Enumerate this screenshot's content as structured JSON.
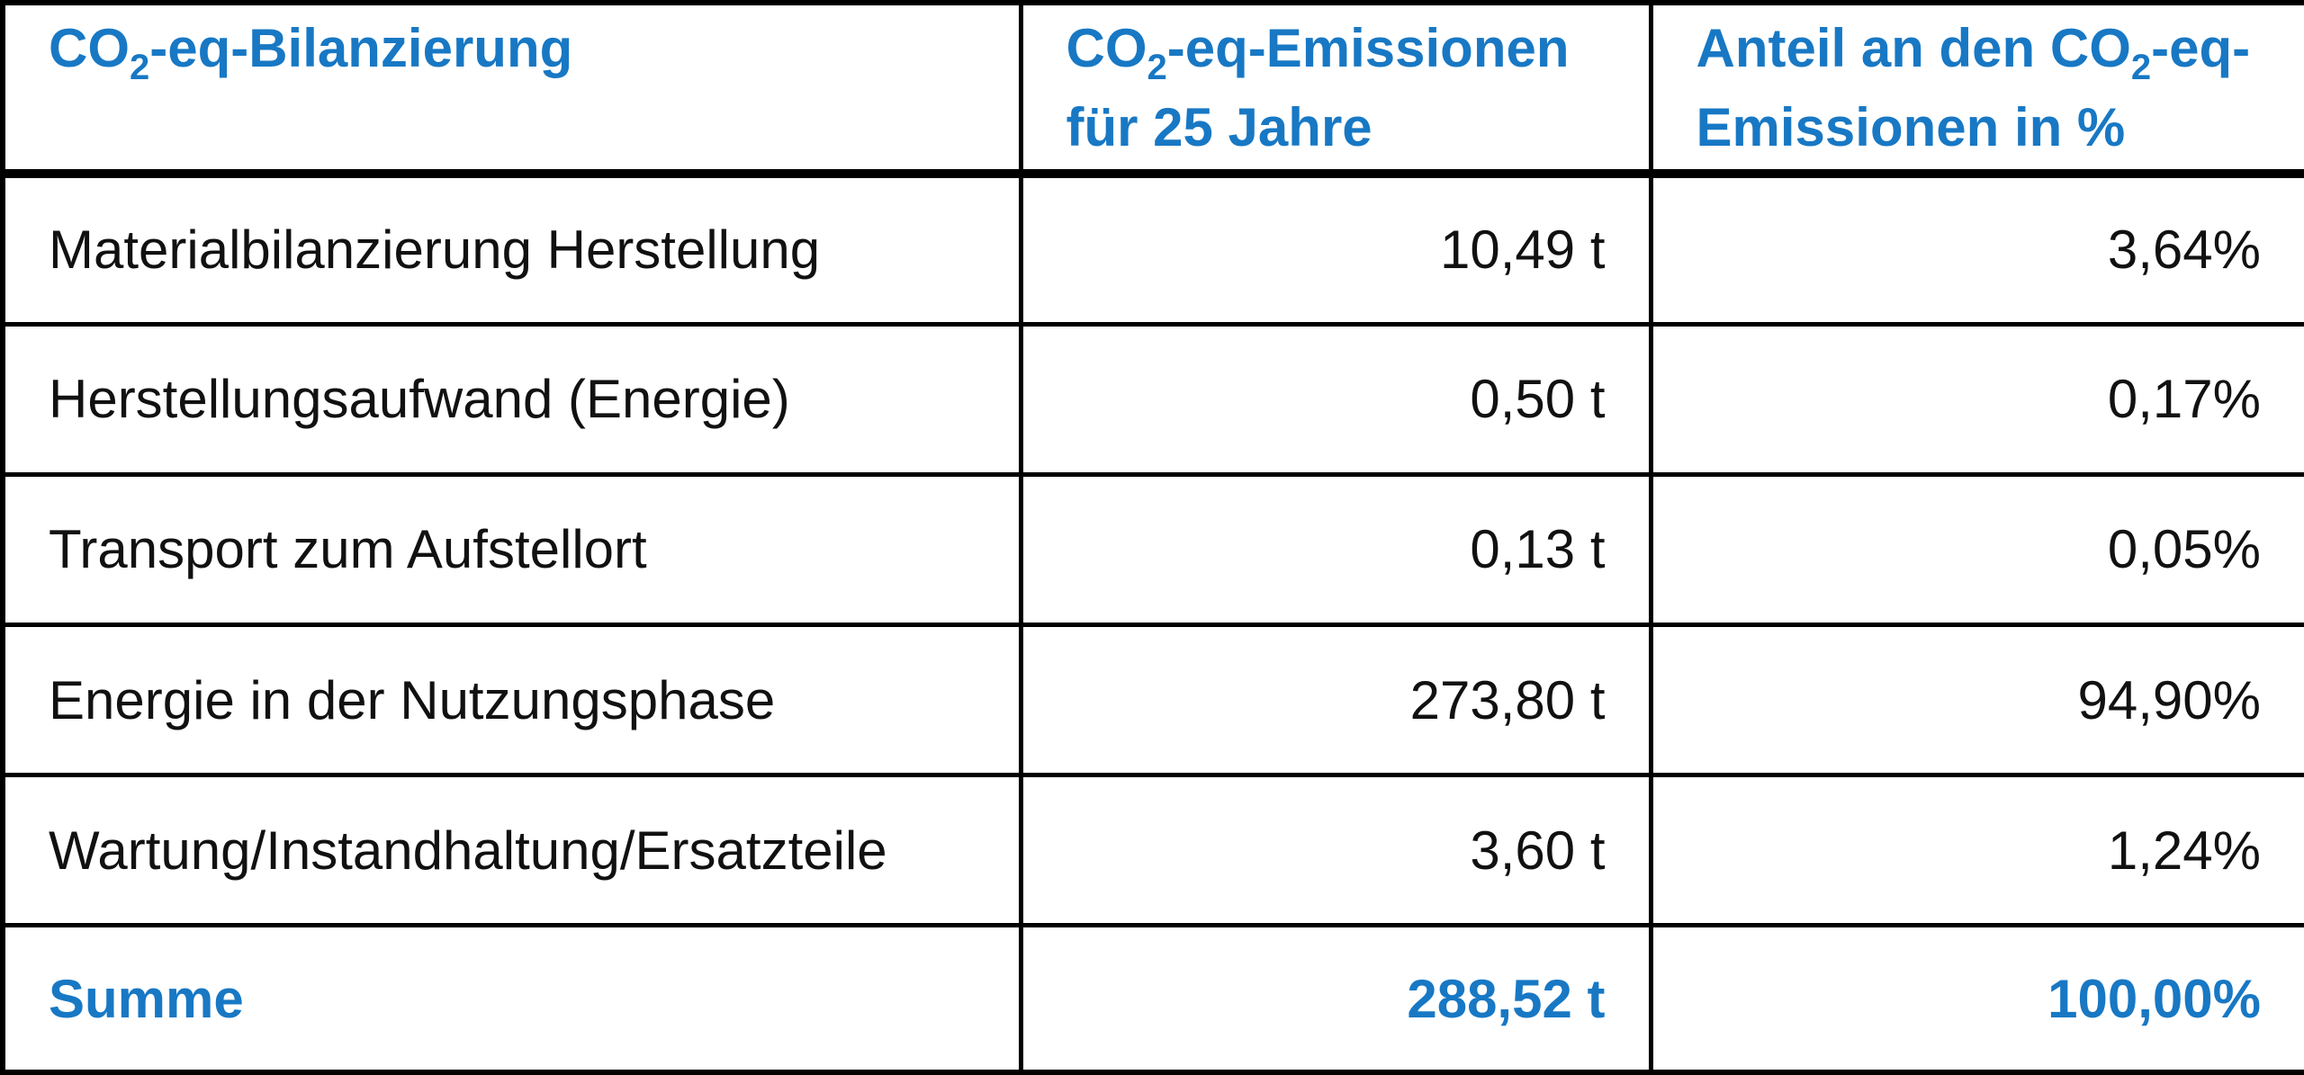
{
  "header": {
    "col1": {
      "prefix": "CO",
      "sub": "2",
      "suffix": "-eq-Bilanzierung"
    },
    "col2": {
      "prefix": "CO",
      "sub": "2",
      "suffix": "-eq-Emissionen",
      "line2": "für 25 Jahre"
    },
    "col3": {
      "prefix": "Anteil an den CO",
      "sub": "2",
      "suffix": "-eq-",
      "line2": "Emissionen in %"
    }
  },
  "rows": [
    {
      "label": "Materialbilanzierung Herstellung",
      "emissions": "10,49 t",
      "share": "3,64%"
    },
    {
      "label": "Herstellungsaufwand (Energie)",
      "emissions": "0,50 t",
      "share": "0,17%"
    },
    {
      "label": "Transport zum Aufstellort",
      "emissions": "0,13 t",
      "share": "0,05%"
    },
    {
      "label": "Energie in der Nutzungsphase",
      "emissions": "273,80 t",
      "share": "94,90%"
    },
    {
      "label": "Wartung/Instandhaltung/Ersatzteile",
      "emissions": "3,60 t",
      "share": "1,24%"
    }
  ],
  "total": {
    "label": "Summe",
    "emissions": "288,52 t",
    "share": "100,00%"
  },
  "colors": {
    "accent": "#1878c4",
    "text": "#111111",
    "border": "#000000"
  }
}
